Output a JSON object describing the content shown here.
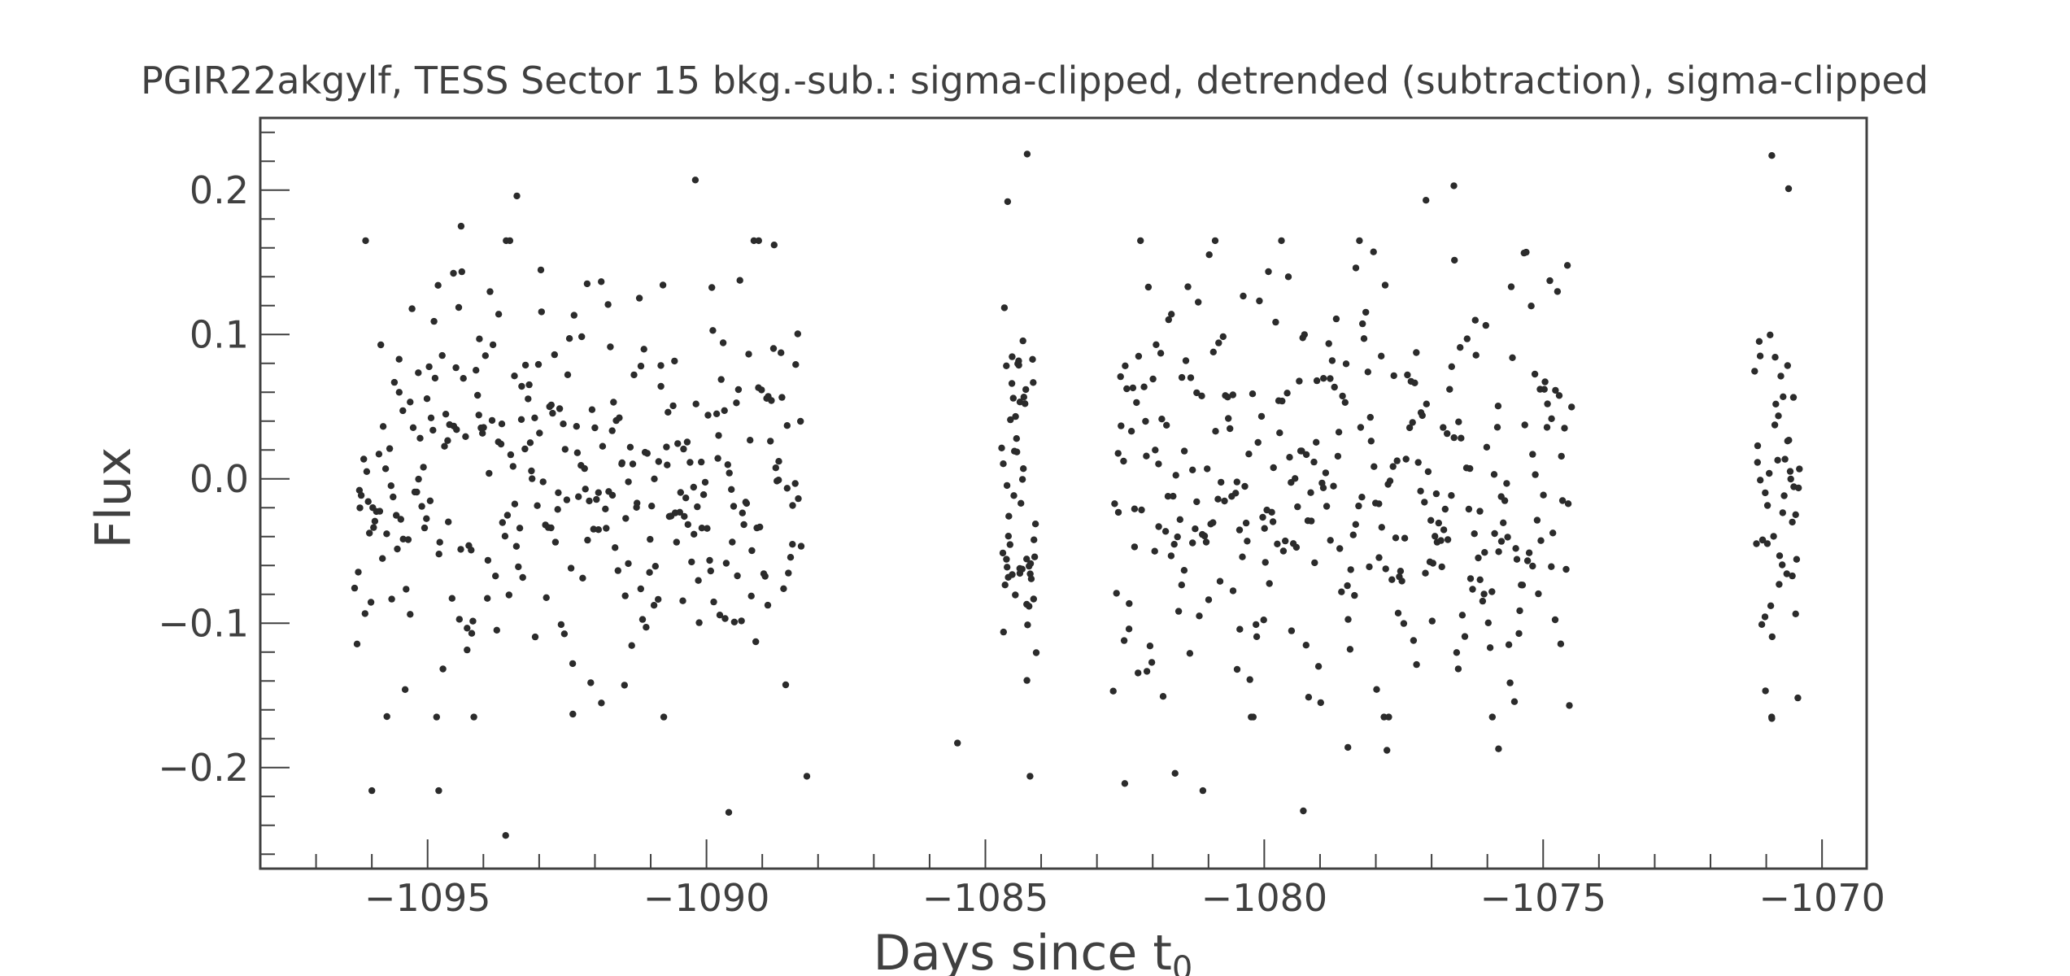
{
  "chart_data": {
    "type": "scatter",
    "title": "PGIR22akgylf, TESS Sector 15 bkg.-sub.: sigma-clipped, detrended (subtraction), sigma-clipped",
    "xlabel": "Days since t",
    "xlabel_subscript": "0",
    "ylabel": "Flux",
    "xlim": [
      -1098.0,
      -1069.2
    ],
    "ylim": [
      -0.27,
      0.25
    ],
    "xticks": [
      -1095,
      -1090,
      -1085,
      -1080,
      -1075,
      -1070
    ],
    "xtick_labels": [
      "−1095",
      "−1090",
      "−1085",
      "−1080",
      "−1075",
      "−1070"
    ],
    "yticks": [
      -0.2,
      -0.1,
      0.0,
      0.1,
      0.2
    ],
    "ytick_labels": [
      "−0.2",
      "−0.1",
      "0.0",
      "0.1",
      "0.2"
    ],
    "grid": false,
    "marker_color": "#2b2b2b",
    "segments": [
      {
        "x_start": -1096.3,
        "x_end": -1088.3,
        "n": 330,
        "seed": 11
      },
      {
        "x_start": -1084.7,
        "x_end": -1084.1,
        "n": 55,
        "seed": 23
      },
      {
        "x_start": -1082.7,
        "x_end": -1074.5,
        "n": 340,
        "seed": 37
      },
      {
        "x_start": -1071.2,
        "x_end": -1070.4,
        "n": 50,
        "seed": 51
      }
    ],
    "outliers": [
      {
        "x": -1096.0,
        "y": -0.216
      },
      {
        "x": -1094.8,
        "y": -0.216
      },
      {
        "x": -1093.6,
        "y": -0.247
      },
      {
        "x": -1093.4,
        "y": 0.196
      },
      {
        "x": -1094.4,
        "y": 0.175
      },
      {
        "x": -1090.2,
        "y": 0.207
      },
      {
        "x": -1089.6,
        "y": -0.231
      },
      {
        "x": -1088.2,
        "y": -0.206
      },
      {
        "x": -1085.5,
        "y": -0.183
      },
      {
        "x": -1084.25,
        "y": 0.225
      },
      {
        "x": -1084.2,
        "y": -0.206
      },
      {
        "x": -1084.6,
        "y": 0.192
      },
      {
        "x": -1082.5,
        "y": -0.211
      },
      {
        "x": -1081.6,
        "y": -0.204
      },
      {
        "x": -1081.1,
        "y": -0.216
      },
      {
        "x": -1079.3,
        "y": -0.23
      },
      {
        "x": -1078.5,
        "y": -0.186
      },
      {
        "x": -1077.8,
        "y": -0.188
      },
      {
        "x": -1076.6,
        "y": 0.203
      },
      {
        "x": -1077.1,
        "y": 0.193
      },
      {
        "x": -1075.8,
        "y": -0.187
      },
      {
        "x": -1070.9,
        "y": 0.224
      },
      {
        "x": -1070.6,
        "y": 0.201
      },
      {
        "x": -1070.9,
        "y": -0.166
      }
    ]
  }
}
